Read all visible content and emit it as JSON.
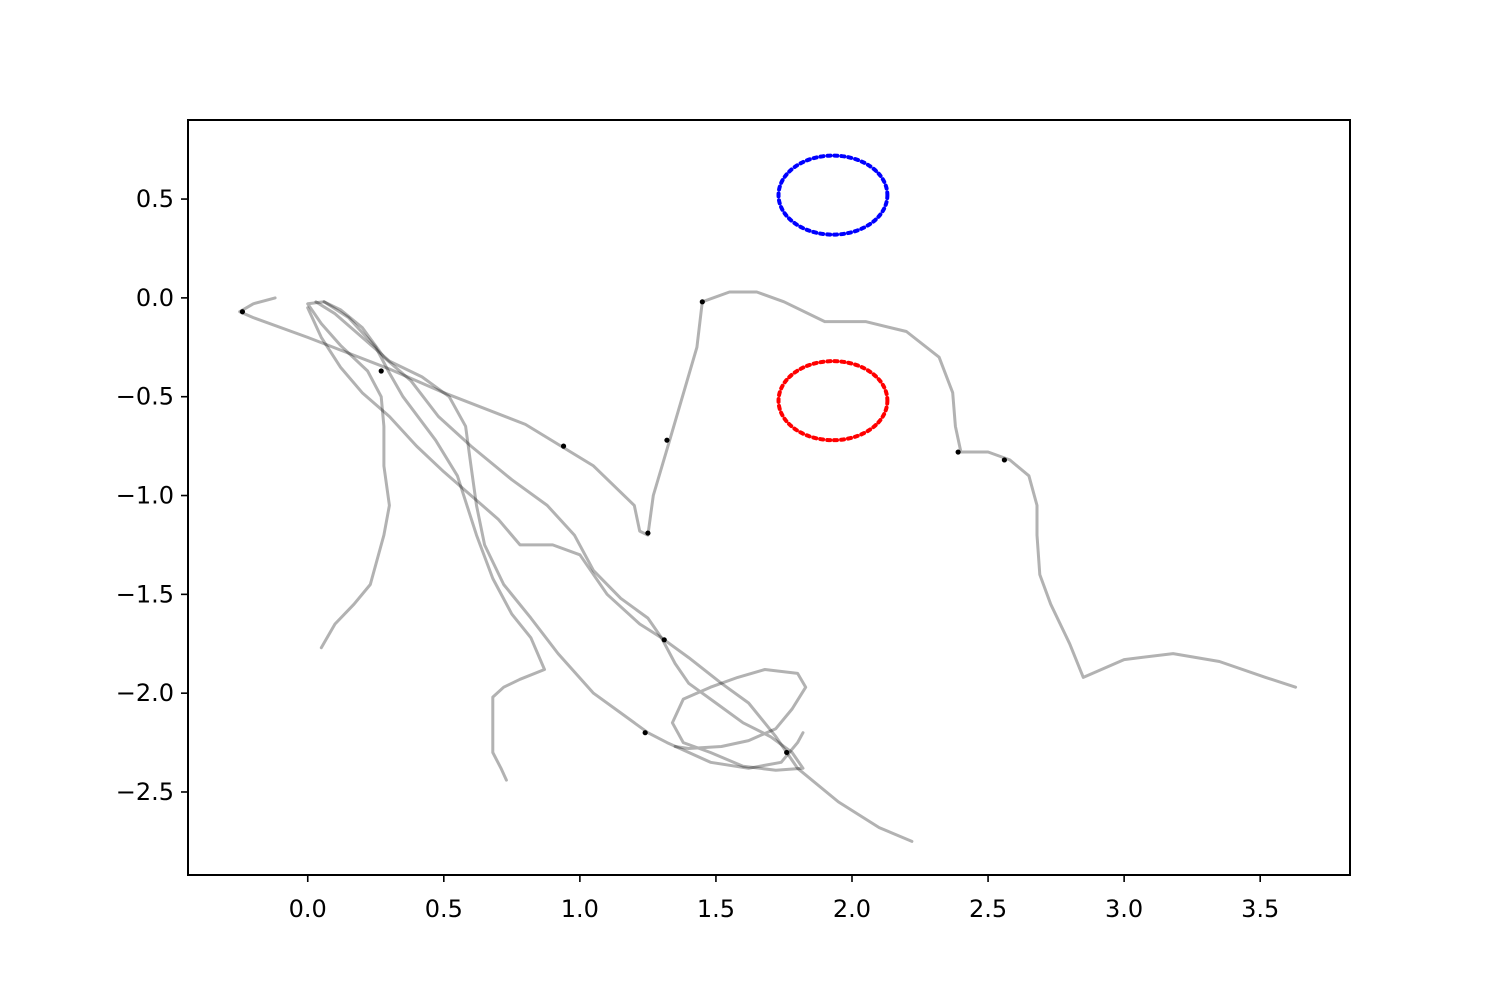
{
  "chart_data": {
    "type": "line",
    "title": "",
    "xlabel": "",
    "ylabel": "",
    "xlim": [
      -0.44,
      3.83
    ],
    "ylim": [
      -2.92,
      0.9
    ],
    "grid": false,
    "legend": "none",
    "x_ticks": [
      {
        "value": 0.0,
        "label": "0.0"
      },
      {
        "value": 0.5,
        "label": "0.5"
      },
      {
        "value": 1.0,
        "label": "1.0"
      },
      {
        "value": 1.5,
        "label": "1.5"
      },
      {
        "value": 2.0,
        "label": "2.0"
      },
      {
        "value": 2.5,
        "label": "2.5"
      },
      {
        "value": 3.0,
        "label": "3.0"
      },
      {
        "value": 3.5,
        "label": "3.5"
      }
    ],
    "y_ticks": [
      {
        "value": 0.5,
        "label": "0.5"
      },
      {
        "value": 0.0,
        "label": "0.0"
      },
      {
        "value": -0.5,
        "label": "−0.5"
      },
      {
        "value": -1.0,
        "label": "−1.0"
      },
      {
        "value": -1.5,
        "label": "−1.5"
      },
      {
        "value": -2.0,
        "label": "−2.0"
      },
      {
        "value": -2.5,
        "label": "−2.5"
      }
    ],
    "circles": [
      {
        "cx": 1.93,
        "cy": 0.52,
        "r": 0.2,
        "color": "#0000ff",
        "style": "dotted"
      },
      {
        "cx": 1.93,
        "cy": -0.52,
        "r": 0.2,
        "color": "#ff0000",
        "style": "dotted"
      }
    ],
    "trajectories": [
      {
        "color": "#000000",
        "opacity": 0.3,
        "points": [
          [
            -0.12,
            0.0
          ],
          [
            -0.2,
            -0.03
          ],
          [
            -0.25,
            -0.07
          ],
          [
            -0.2,
            -0.1
          ],
          [
            0.0,
            -0.2
          ],
          [
            0.3,
            -0.36
          ],
          [
            0.5,
            -0.48
          ],
          [
            0.8,
            -0.64
          ],
          [
            1.05,
            -0.85
          ],
          [
            1.2,
            -1.05
          ],
          [
            1.22,
            -1.18
          ],
          [
            1.25,
            -1.2
          ],
          [
            1.27,
            -1.0
          ],
          [
            1.33,
            -0.72
          ],
          [
            1.43,
            -0.25
          ],
          [
            1.45,
            -0.02
          ],
          [
            1.55,
            0.03
          ],
          [
            1.65,
            0.03
          ],
          [
            1.75,
            -0.02
          ],
          [
            1.9,
            -0.12
          ],
          [
            2.05,
            -0.12
          ],
          [
            2.2,
            -0.17
          ],
          [
            2.32,
            -0.3
          ],
          [
            2.37,
            -0.48
          ],
          [
            2.38,
            -0.65
          ],
          [
            2.4,
            -0.78
          ],
          [
            2.5,
            -0.78
          ],
          [
            2.58,
            -0.82
          ],
          [
            2.65,
            -0.9
          ],
          [
            2.68,
            -1.05
          ],
          [
            2.68,
            -1.2
          ],
          [
            2.69,
            -1.4
          ],
          [
            2.73,
            -1.55
          ],
          [
            2.8,
            -1.75
          ],
          [
            2.85,
            -1.92
          ],
          [
            3.0,
            -1.83
          ],
          [
            3.18,
            -1.8
          ],
          [
            3.35,
            -1.84
          ],
          [
            3.52,
            -1.92
          ],
          [
            3.63,
            -1.97
          ]
        ]
      },
      {
        "color": "#000000",
        "opacity": 0.3,
        "points": [
          [
            0.05,
            -1.77
          ],
          [
            0.1,
            -1.65
          ],
          [
            0.17,
            -1.55
          ],
          [
            0.23,
            -1.45
          ],
          [
            0.28,
            -1.2
          ],
          [
            0.3,
            -1.05
          ],
          [
            0.28,
            -0.85
          ],
          [
            0.28,
            -0.65
          ],
          [
            0.27,
            -0.5
          ],
          [
            0.22,
            -0.37
          ],
          [
            0.12,
            -0.24
          ],
          [
            0.05,
            -0.13
          ],
          [
            0.0,
            -0.03
          ],
          [
            0.06,
            -0.02
          ],
          [
            0.15,
            -0.1
          ],
          [
            0.25,
            -0.25
          ],
          [
            0.3,
            -0.38
          ],
          [
            0.35,
            -0.5
          ],
          [
            0.47,
            -0.72
          ],
          [
            0.55,
            -0.9
          ],
          [
            0.62,
            -1.2
          ],
          [
            0.68,
            -1.42
          ],
          [
            0.75,
            -1.6
          ],
          [
            0.82,
            -1.72
          ],
          [
            0.87,
            -1.88
          ],
          [
            0.78,
            -1.93
          ],
          [
            0.72,
            -1.97
          ],
          [
            0.68,
            -2.02
          ],
          [
            0.68,
            -2.15
          ],
          [
            0.68,
            -2.3
          ],
          [
            0.71,
            -2.38
          ],
          [
            0.73,
            -2.44
          ]
        ]
      },
      {
        "color": "#000000",
        "opacity": 0.3,
        "points": [
          [
            0.03,
            -0.02
          ],
          [
            0.1,
            -0.08
          ],
          [
            0.2,
            -0.2
          ],
          [
            0.3,
            -0.32
          ],
          [
            0.42,
            -0.4
          ],
          [
            0.52,
            -0.5
          ],
          [
            0.58,
            -0.65
          ],
          [
            0.6,
            -0.85
          ],
          [
            0.62,
            -1.05
          ],
          [
            0.65,
            -1.25
          ],
          [
            0.72,
            -1.45
          ],
          [
            0.82,
            -1.62
          ],
          [
            0.92,
            -1.8
          ],
          [
            1.05,
            -2.0
          ],
          [
            1.15,
            -2.1
          ],
          [
            1.25,
            -2.2
          ],
          [
            1.32,
            -2.25
          ],
          [
            1.48,
            -2.35
          ],
          [
            1.62,
            -2.38
          ],
          [
            1.74,
            -2.35
          ],
          [
            1.8,
            -2.25
          ],
          [
            1.82,
            -2.2
          ]
        ]
      },
      {
        "color": "#000000",
        "opacity": 0.3,
        "points": [
          [
            0.0,
            -0.05
          ],
          [
            0.05,
            -0.2
          ],
          [
            0.12,
            -0.35
          ],
          [
            0.2,
            -0.48
          ],
          [
            0.3,
            -0.6
          ],
          [
            0.4,
            -0.75
          ],
          [
            0.5,
            -0.88
          ],
          [
            0.6,
            -1.0
          ],
          [
            0.7,
            -1.12
          ],
          [
            0.78,
            -1.25
          ],
          [
            0.9,
            -1.25
          ],
          [
            1.0,
            -1.3
          ],
          [
            1.1,
            -1.5
          ],
          [
            1.22,
            -1.65
          ],
          [
            1.3,
            -1.72
          ],
          [
            1.4,
            -1.82
          ],
          [
            1.52,
            -1.95
          ],
          [
            1.62,
            -2.05
          ],
          [
            1.72,
            -2.22
          ],
          [
            1.8,
            -2.38
          ],
          [
            1.95,
            -2.55
          ],
          [
            2.1,
            -2.68
          ],
          [
            2.22,
            -2.75
          ]
        ]
      },
      {
        "color": "#000000",
        "opacity": 0.3,
        "points": [
          [
            0.06,
            -0.02
          ],
          [
            0.12,
            -0.06
          ],
          [
            0.2,
            -0.15
          ],
          [
            0.28,
            -0.3
          ],
          [
            0.38,
            -0.42
          ],
          [
            0.48,
            -0.6
          ],
          [
            0.6,
            -0.75
          ],
          [
            0.75,
            -0.92
          ],
          [
            0.88,
            -1.05
          ],
          [
            0.98,
            -1.2
          ],
          [
            1.05,
            -1.38
          ],
          [
            1.15,
            -1.52
          ],
          [
            1.25,
            -1.62
          ],
          [
            1.3,
            -1.72
          ],
          [
            1.35,
            -1.85
          ],
          [
            1.4,
            -1.95
          ],
          [
            1.5,
            -2.05
          ],
          [
            1.6,
            -2.15
          ],
          [
            1.7,
            -2.22
          ],
          [
            1.78,
            -2.3
          ],
          [
            1.82,
            -2.38
          ],
          [
            1.72,
            -2.39
          ],
          [
            1.6,
            -2.37
          ],
          [
            1.48,
            -2.3
          ],
          [
            1.38,
            -2.25
          ],
          [
            1.34,
            -2.15
          ],
          [
            1.38,
            -2.03
          ],
          [
            1.48,
            -1.97
          ],
          [
            1.58,
            -1.92
          ],
          [
            1.68,
            -1.88
          ],
          [
            1.8,
            -1.9
          ],
          [
            1.83,
            -1.97
          ],
          [
            1.78,
            -2.08
          ],
          [
            1.72,
            -2.18
          ],
          [
            1.62,
            -2.24
          ],
          [
            1.52,
            -2.27
          ],
          [
            1.4,
            -2.28
          ],
          [
            1.35,
            -2.27
          ]
        ]
      }
    ],
    "markers": [
      [
        -0.24,
        -0.07
      ],
      [
        0.27,
        -0.37
      ],
      [
        1.25,
        -1.19
      ],
      [
        1.45,
        -0.02
      ],
      [
        1.32,
        -0.72
      ],
      [
        0.94,
        -0.75
      ],
      [
        2.39,
        -0.78
      ],
      [
        2.56,
        -0.82
      ],
      [
        1.31,
        -1.73
      ],
      [
        1.24,
        -2.2
      ],
      [
        1.76,
        -2.3
      ]
    ]
  }
}
